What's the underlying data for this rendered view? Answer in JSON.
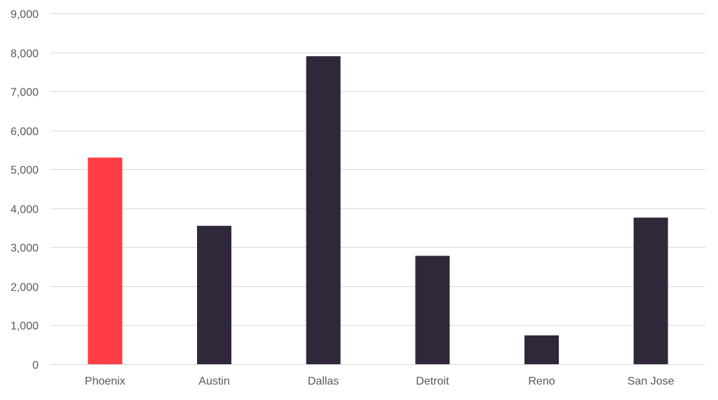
{
  "chart_data": {
    "type": "bar",
    "title": "",
    "xlabel": "",
    "ylabel": "",
    "categories": [
      "Phoenix",
      "Austin",
      "Dallas",
      "Detroit",
      "Reno",
      "San Jose"
    ],
    "values": [
      5300,
      3550,
      7900,
      2780,
      740,
      3760
    ],
    "highlight_index": 0,
    "colors": {
      "highlight": "#ff3d44",
      "default": "#30283a",
      "grid": "#d9d9d9",
      "tick_text": "#595959"
    },
    "ylim": [
      0,
      9000
    ],
    "yticks": [
      0,
      1000,
      2000,
      3000,
      4000,
      5000,
      6000,
      7000,
      8000,
      9000
    ],
    "ytick_labels": [
      "0",
      "1,000",
      "2,000",
      "3,000",
      "4,000",
      "5,000",
      "6,000",
      "7,000",
      "8,000",
      "9,000"
    ],
    "grid": true,
    "legend": "none"
  }
}
